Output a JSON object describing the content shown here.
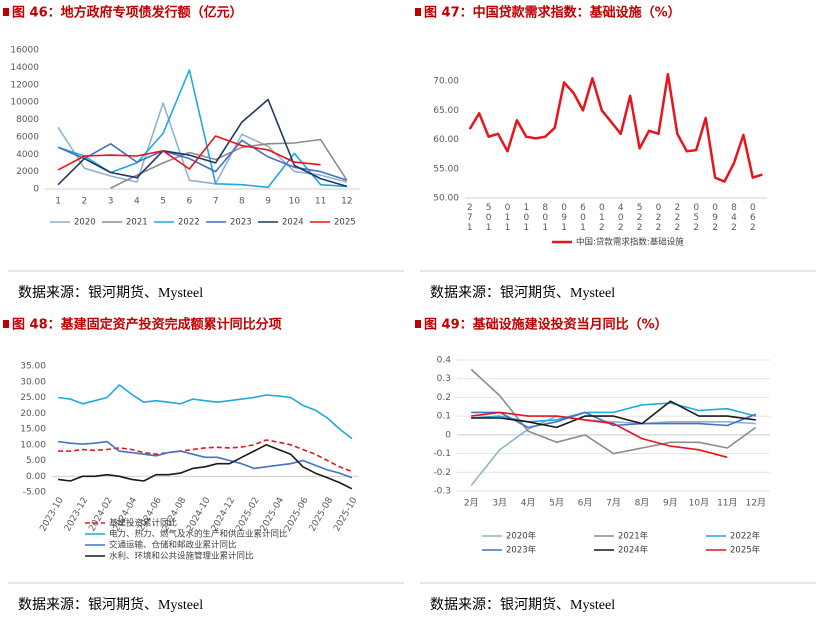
{
  "chart_data": [
    {
      "type": "line",
      "title": "图 46：地方政府专项债发行额（亿元）",
      "source": "数据来源：银河期货、Mysteel",
      "categories": [
        "1",
        "2",
        "3",
        "4",
        "5",
        "6",
        "7",
        "8",
        "9",
        "10",
        "11",
        "12"
      ],
      "ylim": [
        0,
        16000
      ],
      "yticks": [
        0,
        2000,
        4000,
        6000,
        8000,
        10000,
        12000,
        14000,
        16000
      ],
      "grid": false,
      "legend": "bottom",
      "series": [
        {
          "name": "2020",
          "color": "#8fb4cf",
          "values": [
            7100,
            2400,
            1500,
            800,
            9900,
            1000,
            600,
            6300,
            4900,
            2000,
            1600,
            800
          ]
        },
        {
          "name": "2021",
          "color": "#8c8c8c",
          "values": [
            null,
            null,
            100,
            1600,
            3000,
            4200,
            3400,
            4800,
            5200,
            5300,
            5700,
            1000
          ]
        },
        {
          "name": "2022",
          "color": "#1fa9e1",
          "values": [
            4800,
            3800,
            1900,
            3000,
            6400,
            13700,
            600,
            500,
            200,
            4100,
            500,
            300
          ]
        },
        {
          "name": "2023",
          "color": "#4472c4",
          "values": [
            4800,
            3500,
            5200,
            3100,
            4400,
            3500,
            2000,
            5600,
            3700,
            2500,
            2000,
            1000
          ]
        },
        {
          "name": "2024",
          "color": "#1f3864",
          "values": [
            500,
            3500,
            1900,
            1300,
            4400,
            3900,
            3000,
            7700,
            10300,
            2700,
            1200,
            300
          ]
        },
        {
          "name": "2025",
          "color": "#e8141c",
          "values": [
            2200,
            3800,
            3900,
            3800,
            4400,
            2300,
            6100,
            5000,
            4500,
            3100,
            2800,
            null
          ]
        }
      ]
    },
    {
      "type": "line",
      "title": "图 47：中国贷款需求指数：基础设施（%）",
      "source": "数据来源：银河期货、Mysteel",
      "categories": [
        "271",
        null,
        "501",
        null,
        "011",
        null,
        "101",
        null,
        "801",
        null,
        "091",
        null,
        "601",
        null,
        "012",
        null,
        "402",
        null,
        "522",
        null,
        "022",
        null,
        "222",
        null,
        "052",
        null,
        "092",
        null,
        "842",
        null,
        "062",
        null
      ],
      "ylim": [
        50,
        75
      ],
      "yticks": [
        {
          "value": 50,
          "label": "50.00"
        },
        {
          "value": 55,
          "label": "55.00"
        },
        {
          "value": 60,
          "label": "60.00"
        },
        {
          "value": 65,
          "label": "65.00"
        },
        {
          "value": 70,
          "label": "70.00"
        }
      ],
      "grid": false,
      "legend": "bottom",
      "series": [
        {
          "name": "中国:贷款需求指数:基础设施",
          "color": "#e8141c",
          "values": [
            61.8,
            64.5,
            60.5,
            61.0,
            58.0,
            63.3,
            60.5,
            60.2,
            60.5,
            62.0,
            69.8,
            68.0,
            65.0,
            70.5,
            65.0,
            63.0,
            61.0,
            67.5,
            58.5,
            61.5,
            61.0,
            71.2,
            61.0,
            58.0,
            58.2,
            63.7,
            53.5,
            52.8,
            56.0,
            60.8,
            53.5,
            54.0
          ]
        }
      ]
    },
    {
      "type": "line",
      "title": "图 48：基建固定资产投资完成额累计同比分项",
      "source": "数据来源：银河期货、Mysteel",
      "categories": [
        "2023-10",
        null,
        "2023-12",
        null,
        "2024-02",
        null,
        "2024-04",
        null,
        "2024-06",
        null,
        "2024-08",
        null,
        "2024-10",
        null,
        "2024-12",
        null,
        "2025-02",
        null,
        "2025-04",
        null,
        "2025-06",
        null,
        "2025-08",
        null,
        "2025-10"
      ],
      "ylim": [
        -5,
        35
      ],
      "yticks": [
        {
          "value": -5,
          "label": "-5.00"
        },
        {
          "value": 0,
          "label": "0.00"
        },
        {
          "value": 5,
          "label": "5.00"
        },
        {
          "value": 10,
          "label": "10.00"
        },
        {
          "value": 15,
          "label": "15.00"
        },
        {
          "value": 20,
          "label": "20.00"
        },
        {
          "value": 25,
          "label": "25.00"
        },
        {
          "value": 30,
          "label": "30.00"
        },
        {
          "value": 35,
          "label": "35.00"
        }
      ],
      "grid": false,
      "legend": "bottom",
      "series": [
        {
          "name": "基建投资累计同比",
          "color": "#e8141c",
          "style": "dashed",
          "values": [
            8,
            8,
            8.5,
            8.2,
            8.5,
            9,
            8.5,
            7.5,
            7,
            7.5,
            8,
            8.5,
            9,
            9.2,
            9,
            9.3,
            10,
            11.5,
            10.8,
            10,
            8.5,
            7,
            5,
            3,
            1.5
          ]
        },
        {
          "name": "电力、热力、燃气及水的生产和供应业累计同比",
          "color": "#1fa9e1",
          "values": [
            25,
            24.5,
            23,
            24,
            25,
            29,
            26,
            23.5,
            24,
            23.5,
            23,
            24.5,
            24,
            23.5,
            24,
            24.5,
            25,
            25.8,
            25.5,
            25,
            22.5,
            21,
            18.5,
            15,
            12
          ]
        },
        {
          "name": "交通运输、仓储和邮政业累计同比",
          "color": "#4472c4",
          "values": [
            11,
            10.5,
            10.2,
            10.5,
            11,
            8,
            7.5,
            7,
            6.5,
            7.5,
            8,
            7,
            6,
            6,
            5,
            4,
            2.5,
            3,
            3.5,
            4,
            5,
            3.5,
            2,
            1,
            -0.5
          ]
        },
        {
          "name": "水利、环境和公共设施管理业累计同比",
          "color": "#1a1a1a",
          "values": [
            -1,
            -1.5,
            0,
            0,
            0.5,
            0,
            -1,
            -1.5,
            0.5,
            0.5,
            1,
            2.5,
            3,
            4,
            4,
            6,
            8,
            10,
            8.5,
            7,
            3,
            1,
            -0.5,
            -2,
            -4
          ]
        }
      ]
    },
    {
      "type": "line",
      "title": "图 49：基础设施建设投资当月同比（%）",
      "source": "数据来源：银河期货、Mysteel",
      "categories": [
        "2月",
        "3月",
        "4月",
        "5月",
        "6月",
        "7月",
        "8月",
        "9月",
        "10月",
        "11月",
        "12月"
      ],
      "ylim": [
        -0.3,
        0.4
      ],
      "yticks": [
        -0.3,
        -0.2,
        -0.1,
        0,
        0.1,
        0.2,
        0.3,
        0.4
      ],
      "grid": true,
      "legend": "bottom",
      "series": [
        {
          "name": "2020年",
          "color": "#8fb4cf",
          "values": [
            -0.27,
            -0.08,
            0.03,
            0.1,
            0.08,
            0.07,
            0.06,
            0.07,
            0.07,
            0.07,
            0.06
          ]
        },
        {
          "name": "2021年",
          "color": "#8c8c8c",
          "values": [
            0.35,
            0.21,
            0.02,
            -0.04,
            0.0,
            -0.1,
            -0.07,
            -0.04,
            -0.04,
            -0.07,
            0.04
          ]
        },
        {
          "name": "2022年",
          "color": "#1fa9e1",
          "values": [
            0.09,
            0.1,
            0.07,
            0.08,
            0.12,
            0.12,
            0.16,
            0.17,
            0.13,
            0.14,
            0.1
          ]
        },
        {
          "name": "2023年",
          "color": "#4472c4",
          "values": [
            0.12,
            0.12,
            0.04,
            0.07,
            0.12,
            0.05,
            0.06,
            0.06,
            0.06,
            0.05,
            0.11
          ]
        },
        {
          "name": "2024年",
          "color": "#1a1a1a",
          "values": [
            0.09,
            0.09,
            0.07,
            0.04,
            0.1,
            0.1,
            0.06,
            0.18,
            0.1,
            0.1,
            0.08
          ]
        },
        {
          "name": "2025年",
          "color": "#e8141c",
          "values": [
            0.1,
            0.12,
            0.1,
            0.1,
            0.08,
            0.06,
            -0.02,
            -0.06,
            -0.08,
            -0.12,
            null
          ]
        }
      ]
    }
  ]
}
